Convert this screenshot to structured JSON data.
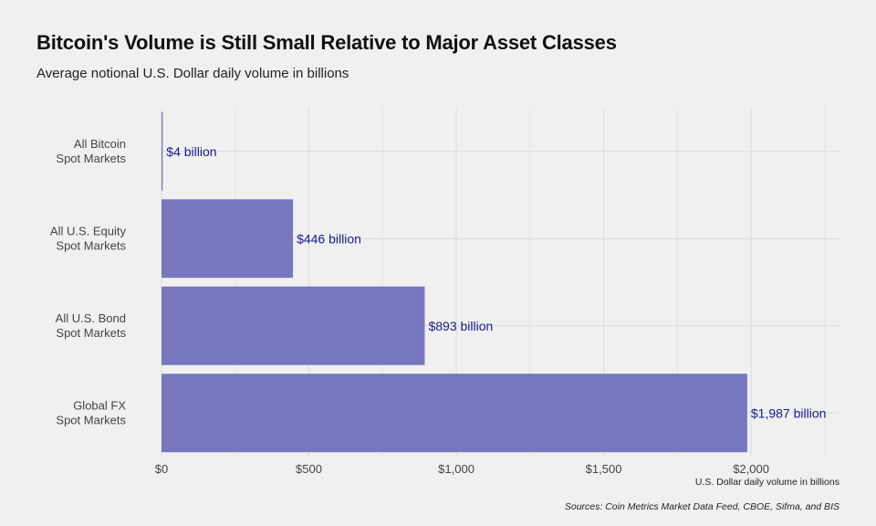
{
  "chart_data": {
    "type": "bar",
    "orientation": "horizontal",
    "title": "Bitcoin's Volume is Still Small Relative to Major Asset Classes",
    "subtitle": "Average notional U.S. Dollar daily volume in billions",
    "xlabel": "U.S. Dollar daily volume in billions",
    "ylabel": "",
    "source": "Sources: Coin Metrics Market Data Feed, CBOE, Sifma, and BIS",
    "categories": [
      [
        "All Bitcoin",
        "Spot Markets"
      ],
      [
        "All U.S. Equity",
        "Spot Markets"
      ],
      [
        "All U.S. Bond",
        "Spot Markets"
      ],
      [
        "Global FX",
        "Spot Markets"
      ]
    ],
    "values": [
      4,
      446,
      893,
      1987
    ],
    "data_labels": [
      "$4 billion",
      "$446 billion",
      "$893 billion",
      "$1,987 billion"
    ],
    "xlim": [
      0,
      2300
    ],
    "xticks": [
      0,
      500,
      1000,
      1500,
      2000
    ],
    "xtick_labels": [
      "$0",
      "$500",
      "$1,000",
      "$1,500",
      "$2,000"
    ],
    "bar_color": "#7777bf",
    "label_color": "#1a1a8c",
    "grid": true,
    "legend": "none"
  }
}
